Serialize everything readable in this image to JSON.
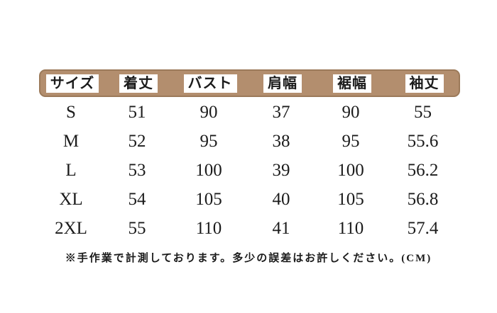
{
  "chart_data": {
    "type": "table",
    "columns": [
      "サイズ",
      "着丈",
      "バスト",
      "肩幅",
      "裾幅",
      "袖丈"
    ],
    "rows": [
      [
        "S",
        "51",
        "90",
        "37",
        "90",
        "55"
      ],
      [
        "M",
        "52",
        "95",
        "38",
        "95",
        "55.6"
      ],
      [
        "L",
        "53",
        "100",
        "39",
        "100",
        "56.2"
      ],
      [
        "XL",
        "54",
        "105",
        "40",
        "105",
        "56.8"
      ],
      [
        "2XL",
        "55",
        "110",
        "41",
        "110",
        "57.4"
      ]
    ],
    "note": "※手作業で計測しております。多少の誤差はお許しください。(CM)",
    "unit": "CM",
    "colors": {
      "header_band": "#b38e6e",
      "header_band_border": "#9c7a5a",
      "header_box_bg": "#ffffff",
      "text": "#1b1b1b",
      "background": "#ffffff"
    }
  }
}
